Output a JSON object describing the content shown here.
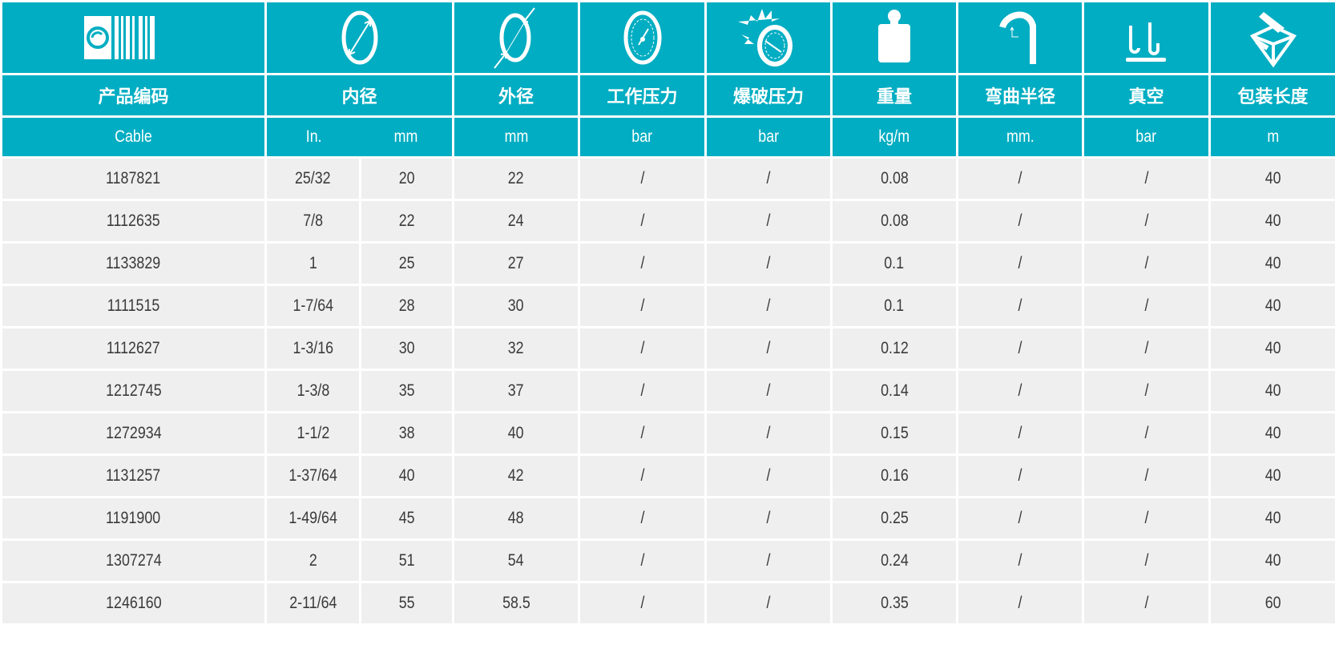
{
  "colors": {
    "header_bg": "#00adc2",
    "row_bg": "#efefef",
    "text": "#3a3a3a"
  },
  "icons": [
    "barcode-icon",
    "inner-diameter-icon",
    "outer-diameter-icon",
    "pressure-gauge-icon",
    "burst-pressure-icon",
    "weight-icon",
    "bend-radius-icon",
    "vacuum-icon",
    "package-box-icon"
  ],
  "headers": [
    "产品编码",
    "内径",
    "外径",
    "工作压力",
    "爆破压力",
    "重量",
    "弯曲半径",
    "真空",
    "包装长度"
  ],
  "units": [
    "Cable",
    "In.",
    "mm",
    "mm",
    "bar",
    "bar",
    "kg/m",
    "mm.",
    "bar",
    "m"
  ],
  "rows": [
    [
      "1187821",
      "25/32",
      "20",
      "22",
      "/",
      "/",
      "0.08",
      "/",
      "/",
      "40"
    ],
    [
      "1112635",
      "7/8",
      "22",
      "24",
      "/",
      "/",
      "0.08",
      "/",
      "/",
      "40"
    ],
    [
      "1133829",
      "1",
      "25",
      "27",
      "/",
      "/",
      "0.1",
      "/",
      "/",
      "40"
    ],
    [
      "1111515",
      "1-7/64",
      "28",
      "30",
      "/",
      "/",
      "0.1",
      "/",
      "/",
      "40"
    ],
    [
      "1112627",
      "1-3/16",
      "30",
      "32",
      "/",
      "/",
      "0.12",
      "/",
      "/",
      "40"
    ],
    [
      "1212745",
      "1-3/8",
      "35",
      "37",
      "/",
      "/",
      "0.14",
      "/",
      "/",
      "40"
    ],
    [
      "1272934",
      "1-1/2",
      "38",
      "40",
      "/",
      "/",
      "0.15",
      "/",
      "/",
      "40"
    ],
    [
      "1131257",
      "1-37/64",
      "40",
      "42",
      "/",
      "/",
      "0.16",
      "/",
      "/",
      "40"
    ],
    [
      "1191900",
      "1-49/64",
      "45",
      "48",
      "/",
      "/",
      "0.25",
      "/",
      "/",
      "40"
    ],
    [
      "1307274",
      "2",
      "51",
      "54",
      "/",
      "/",
      "0.24",
      "/",
      "/",
      "40"
    ],
    [
      "1246160",
      "2-11/64",
      "55",
      "58.5",
      "/",
      "/",
      "0.35",
      "/",
      "/",
      "60"
    ]
  ]
}
